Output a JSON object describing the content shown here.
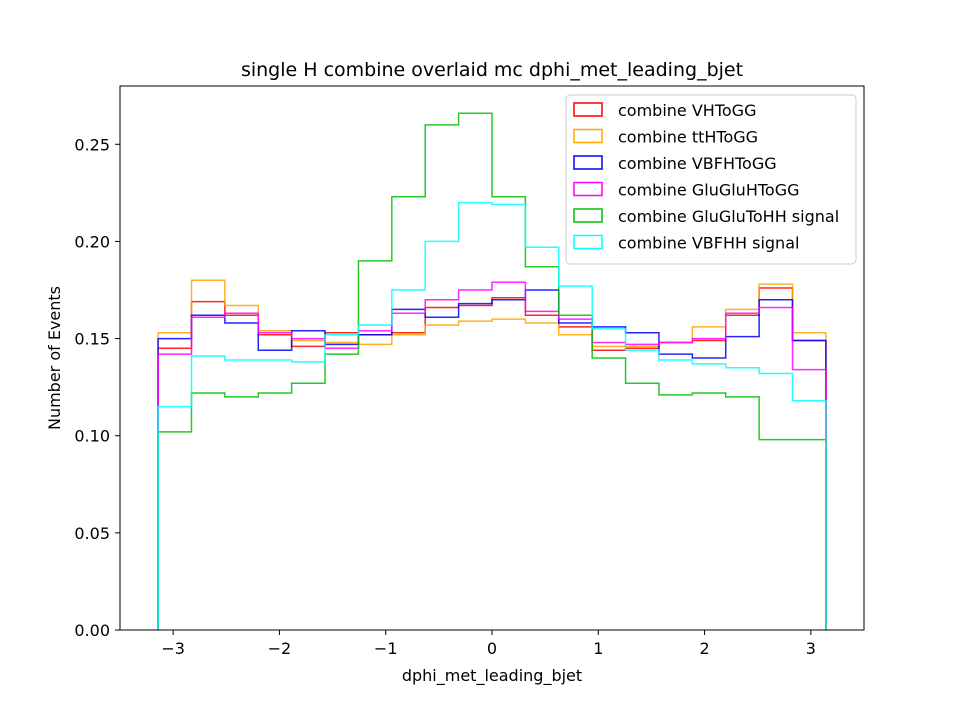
{
  "chart_data": {
    "type": "histogram-step",
    "title": "single H combine overlaid mc dphi_met_leading_bjet",
    "xlabel": "dphi_met_leading_bjet",
    "ylabel": "Number of Events",
    "xlim": [
      -3.5,
      3.5
    ],
    "ylim": [
      0.0,
      0.28
    ],
    "xticks": [
      -3,
      -2,
      -1,
      0,
      1,
      2,
      3
    ],
    "xtick_labels": [
      "−3",
      "−2",
      "−1",
      "0",
      "1",
      "2",
      "3"
    ],
    "yticks": [
      0.0,
      0.05,
      0.1,
      0.15,
      0.2,
      0.25
    ],
    "ytick_labels": [
      "0.00",
      "0.05",
      "0.10",
      "0.15",
      "0.20",
      "0.25"
    ],
    "grid": false,
    "legend_position": "top-right",
    "bin_edges": [
      -3.1416,
      -2.8274,
      -2.5133,
      -2.1991,
      -1.885,
      -1.5708,
      -1.2566,
      -0.9425,
      -0.6283,
      -0.3142,
      0.0,
      0.3142,
      0.6283,
      0.9425,
      1.2566,
      1.5708,
      1.885,
      2.1991,
      2.5133,
      2.8274,
      3.1416
    ],
    "series": [
      {
        "name": "combine VHToGG",
        "color": "#ff0000",
        "values": [
          0.145,
          0.169,
          0.162,
          0.152,
          0.146,
          0.153,
          0.152,
          0.153,
          0.166,
          0.167,
          0.171,
          0.162,
          0.156,
          0.144,
          0.145,
          0.148,
          0.149,
          0.162,
          0.176,
          0.149
        ]
      },
      {
        "name": "combine ttHToGG",
        "color": "#ffa500",
        "values": [
          0.153,
          0.18,
          0.167,
          0.154,
          0.149,
          0.148,
          0.147,
          0.152,
          0.157,
          0.159,
          0.16,
          0.158,
          0.152,
          0.146,
          0.146,
          0.148,
          0.156,
          0.165,
          0.178,
          0.153
        ]
      },
      {
        "name": "combine VBFHToGG",
        "color": "#0000ff",
        "values": [
          0.15,
          0.162,
          0.158,
          0.144,
          0.154,
          0.147,
          0.152,
          0.165,
          0.161,
          0.168,
          0.17,
          0.175,
          0.158,
          0.156,
          0.153,
          0.142,
          0.14,
          0.151,
          0.17,
          0.149
        ]
      },
      {
        "name": "combine GluGluHToGG",
        "color": "#ff00ff",
        "values": [
          0.142,
          0.161,
          0.163,
          0.153,
          0.15,
          0.145,
          0.154,
          0.163,
          0.17,
          0.175,
          0.179,
          0.164,
          0.16,
          0.148,
          0.147,
          0.148,
          0.15,
          0.163,
          0.166,
          0.134
        ]
      },
      {
        "name": "combine GluGluToHH signal",
        "color": "#00c000",
        "values": [
          0.102,
          0.122,
          0.12,
          0.122,
          0.127,
          0.142,
          0.19,
          0.223,
          0.26,
          0.266,
          0.223,
          0.187,
          0.162,
          0.14,
          0.127,
          0.121,
          0.122,
          0.12,
          0.098,
          0.098
        ]
      },
      {
        "name": "combine VBFHH signal",
        "color": "#00ffff",
        "values": [
          0.115,
          0.141,
          0.139,
          0.139,
          0.138,
          0.152,
          0.157,
          0.175,
          0.2,
          0.22,
          0.219,
          0.197,
          0.177,
          0.155,
          0.144,
          0.139,
          0.137,
          0.135,
          0.132,
          0.118
        ]
      }
    ]
  }
}
